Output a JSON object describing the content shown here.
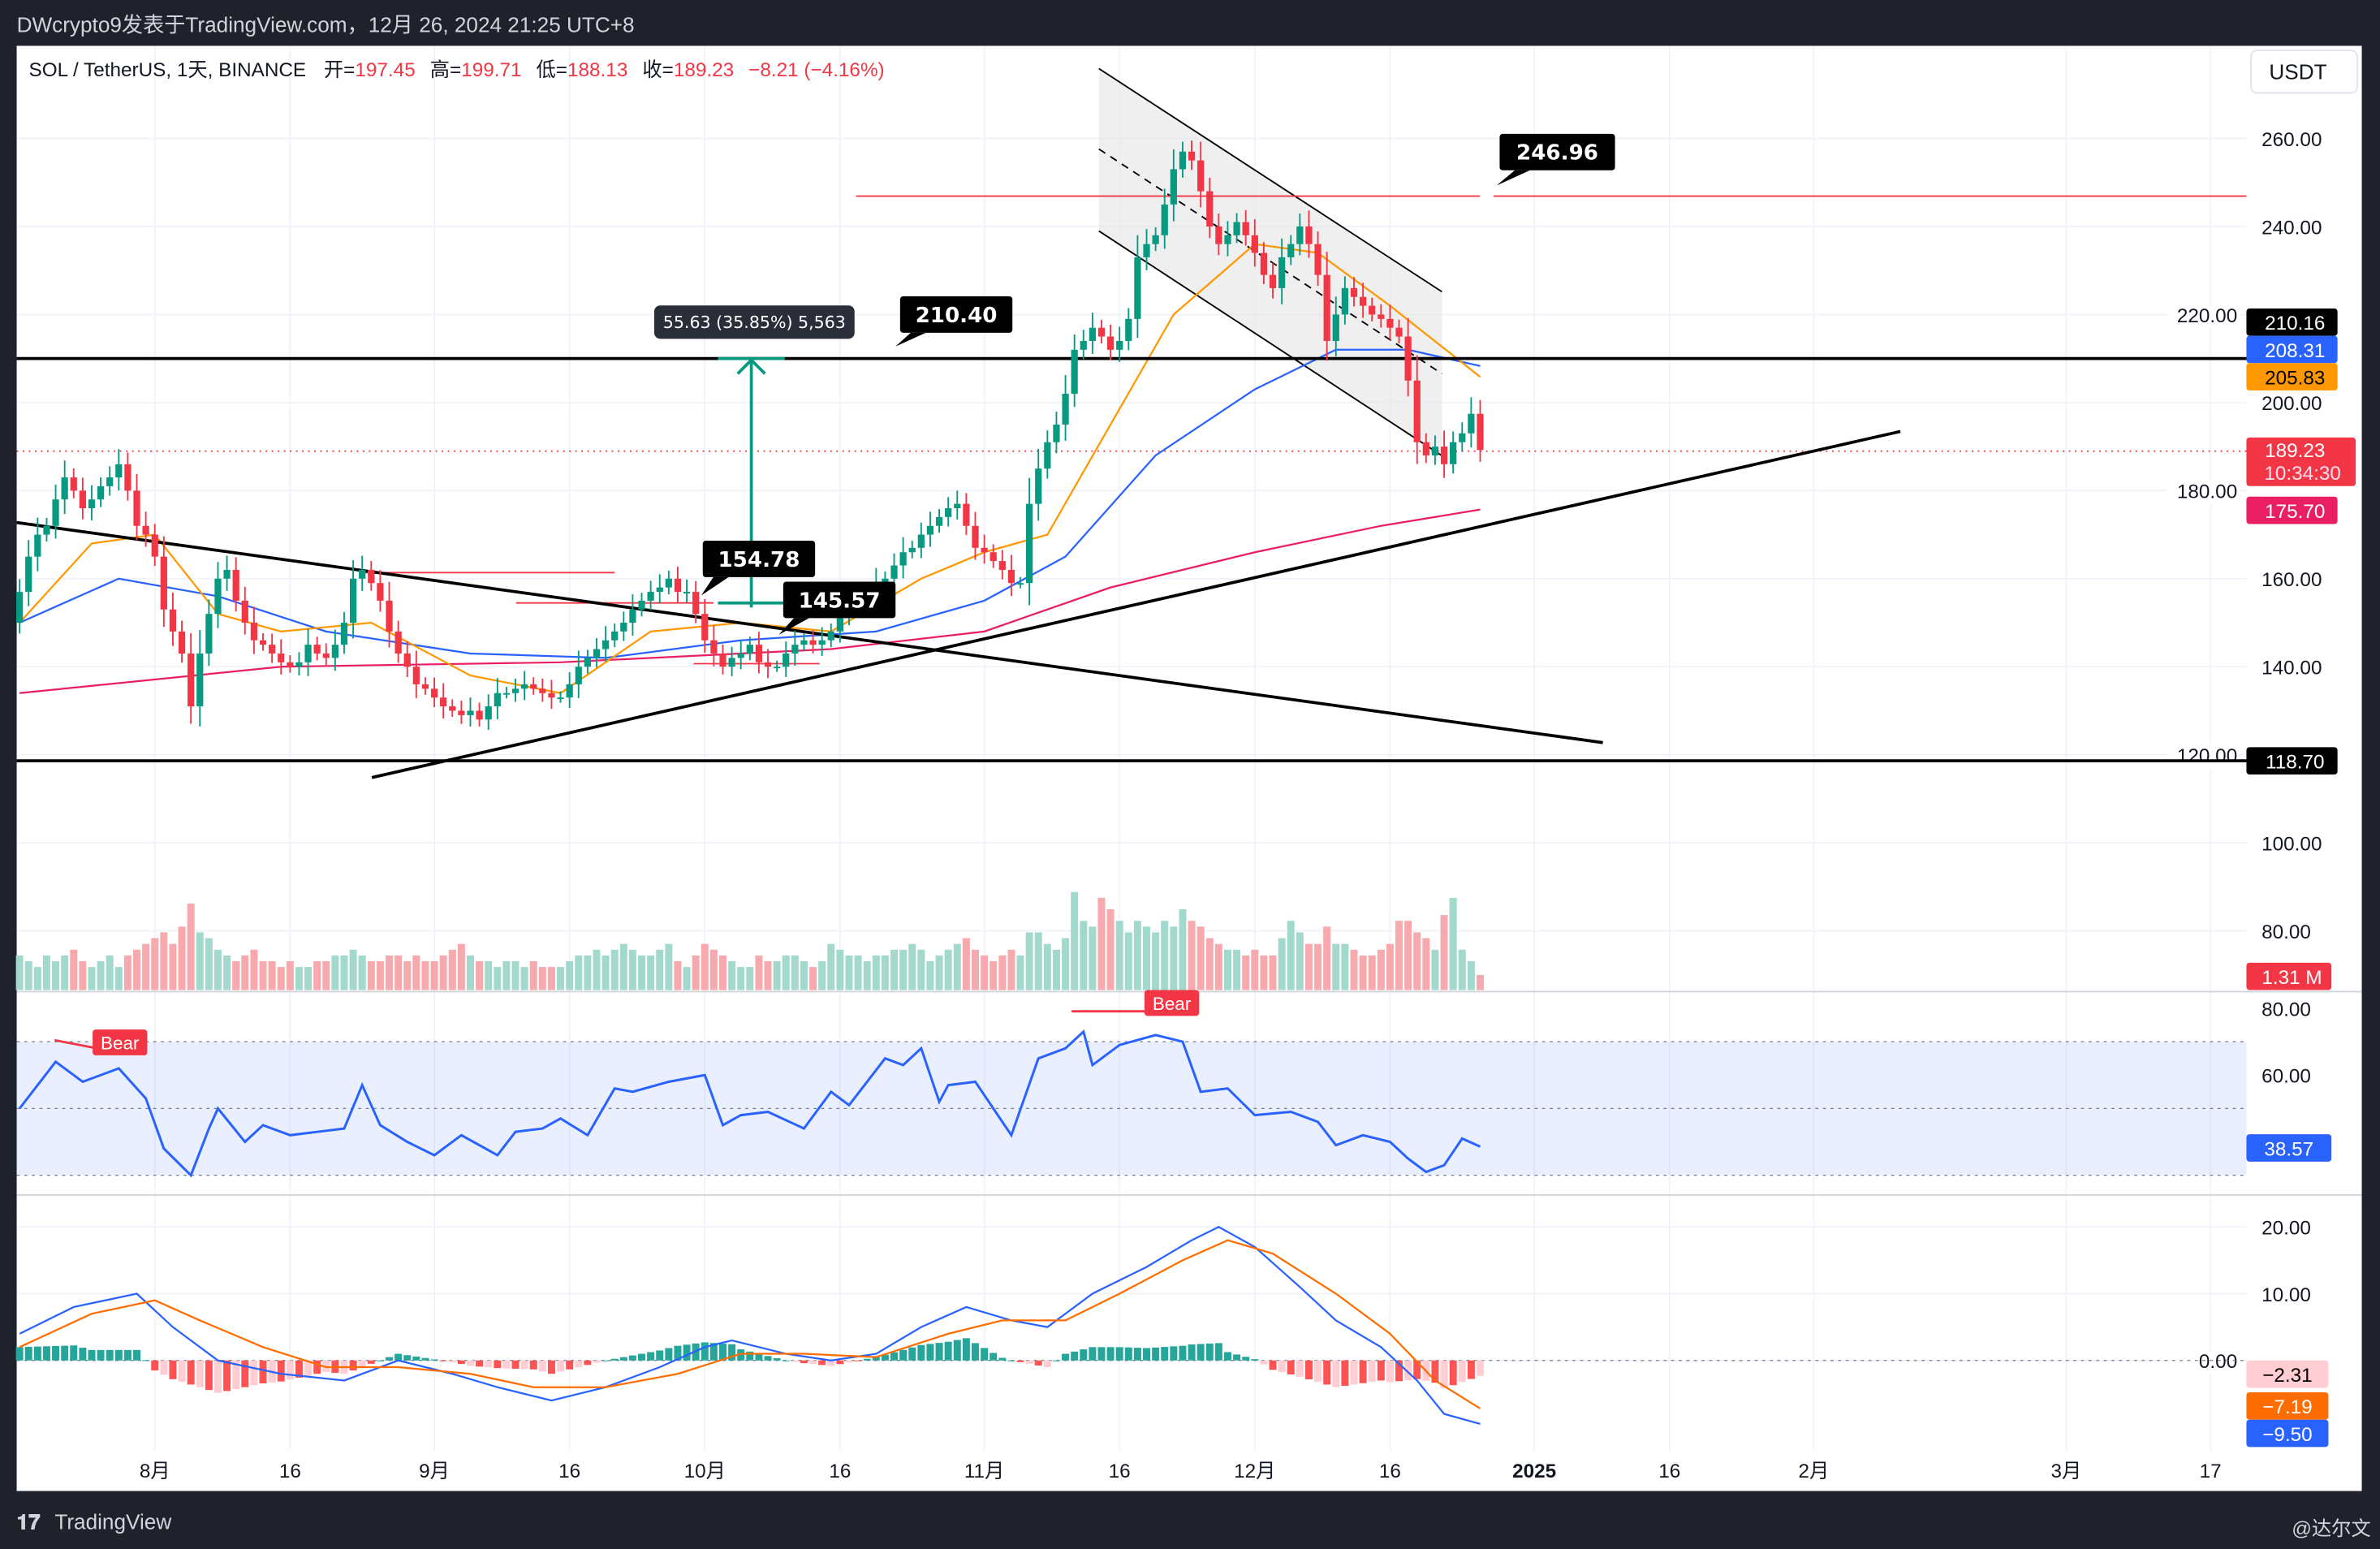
{
  "header": {
    "publisher": "DWcrypto9发表于TradingView.com，12月 26, 2024 21:25 UTC+8"
  },
  "legend": {
    "symbol": "SOL / TetherUS, 1天, BINANCE",
    "open_label": "开=",
    "open": "197.45",
    "high_label": "高=",
    "high": "199.71",
    "low_label": "低=",
    "low": "188.13",
    "close_label": "收=",
    "close": "189.23",
    "change": "−8.21 (−4.16%)"
  },
  "currency": "USDT",
  "colors": {
    "up": "#089981",
    "down": "#f23645",
    "ema_fast": "#ff9800",
    "ema_mid": "#2962ff",
    "ema_slow": "#e91e63",
    "rsi": "#2962ff",
    "macd": "#2962ff",
    "signal": "#ff6d00"
  },
  "price_axis": [
    "260.00",
    "240.00",
    "220.00",
    "200.00",
    "180.00",
    "160.00",
    "140.00",
    "120.00",
    "100.00",
    "80.00"
  ],
  "rsi_axis": [
    "80.00",
    "60.00"
  ],
  "macd_axis": [
    "20.00",
    "10.00",
    "0.00"
  ],
  "time_axis": [
    {
      "label": "8月",
      "date": "2024-08-01"
    },
    {
      "label": "16",
      "date": "2024-08-16"
    },
    {
      "label": "9月",
      "date": "2024-09-01"
    },
    {
      "label": "16",
      "date": "2024-09-16"
    },
    {
      "label": "10月",
      "date": "2024-10-01"
    },
    {
      "label": "16",
      "date": "2024-10-16"
    },
    {
      "label": "11月",
      "date": "2024-11-01"
    },
    {
      "label": "16",
      "date": "2024-11-16"
    },
    {
      "label": "12月",
      "date": "2024-12-01"
    },
    {
      "label": "16",
      "date": "2024-12-16"
    },
    {
      "label": "2025",
      "date": "2025-01-01"
    },
    {
      "label": "16",
      "date": "2025-01-16"
    },
    {
      "label": "2月",
      "date": "2025-02-01"
    },
    {
      "label": "3月",
      "date": "2025-03-01"
    },
    {
      "label": "17",
      "date": "2025-03-17"
    }
  ],
  "price_tags": {
    "level_high": "210.16",
    "ema_mid": "208.31",
    "ema_fast": "205.83",
    "last": "189.23",
    "countdown": "10:34:30",
    "ema_slow": "175.70",
    "level_low": "118.70",
    "volume": "1.31 M",
    "rsi": "38.57",
    "hist": "−2.31",
    "signal": "−7.19",
    "macd": "−9.50"
  },
  "annotations": {
    "l1": "246.96",
    "l2": "210.40",
    "l3": "154.78",
    "l4": "145.57",
    "measure": "55.63 (35.85%) 5,563",
    "bear1": "Bear",
    "bear2": "Bear"
  },
  "footer": {
    "brand": "TradingView",
    "watermark": "@达尔文"
  },
  "chart_data": {
    "type": "candlestick",
    "start_date": "2024-07-17",
    "closes": [
      157,
      165,
      170,
      172,
      178,
      183,
      180,
      176,
      178,
      181,
      183,
      186,
      180,
      172,
      170,
      165,
      153,
      148,
      143,
      131,
      143,
      152,
      160,
      162,
      155,
      150,
      146,
      145,
      143,
      141,
      140,
      141,
      145,
      143,
      142,
      145,
      150,
      160,
      162,
      159,
      155,
      148,
      143,
      140,
      136,
      135,
      133,
      131,
      130,
      129,
      130,
      128,
      131,
      134,
      134,
      135,
      136,
      135,
      134,
      133,
      133,
      136,
      140,
      142,
      144,
      146,
      148,
      150,
      153,
      155,
      157,
      158,
      160,
      157,
      157,
      152,
      146,
      143,
      140,
      142,
      143,
      145,
      141,
      140,
      140,
      143,
      145,
      146,
      145,
      146,
      148,
      152,
      153,
      154,
      156,
      159,
      160,
      163,
      166,
      167,
      170,
      172,
      174,
      176,
      177,
      172,
      167,
      166,
      164,
      162,
      159,
      159,
      177,
      185,
      191,
      195,
      202,
      212,
      214,
      217,
      215,
      212,
      214,
      219,
      233,
      236,
      238,
      245,
      253,
      257,
      255,
      248,
      240,
      236,
      238,
      241,
      238,
      234,
      229,
      226,
      233,
      236,
      240,
      236,
      229,
      214,
      220,
      226,
      224,
      222,
      220,
      219,
      217,
      215,
      205,
      191,
      188,
      190,
      186,
      191,
      193,
      197.45,
      189.23
    ],
    "volume_m": [
      3,
      2.5,
      2,
      3,
      2.5,
      3,
      3.5,
      2.5,
      2,
      2.5,
      3,
      2,
      3,
      3.5,
      4,
      4.5,
      5,
      4,
      5.5,
      7.5,
      5,
      4.5,
      3.5,
      3,
      2.5,
      3,
      3.5,
      2.5,
      2.5,
      2,
      2.5,
      2,
      2,
      2.5,
      2.5,
      3,
      3,
      3.5,
      3,
      2.5,
      2.5,
      3,
      3,
      2.5,
      3,
      2.5,
      2.5,
      3,
      3.5,
      4,
      3,
      2.5,
      2.5,
      2,
      2.5,
      2.5,
      2,
      2.5,
      2,
      2,
      2,
      2.5,
      3,
      3,
      3.5,
      3,
      3.5,
      4,
      3.5,
      3,
      3,
      3.5,
      4,
      2.5,
      2,
      3,
      4,
      3.5,
      3,
      2.5,
      2,
      2,
      3,
      2.5,
      2.5,
      3,
      3,
      2.5,
      2,
      2.5,
      4,
      3.5,
      3,
      3,
      2.5,
      3,
      3,
      3.5,
      3.5,
      4,
      3.5,
      2.5,
      3,
      3.5,
      4,
      4.5,
      3.5,
      3,
      2.5,
      3,
      3.5,
      3,
      5,
      5,
      4,
      3.5,
      4.5,
      8.5,
      6,
      5.5,
      8,
      7,
      6,
      5,
      6,
      5.5,
      5,
      6,
      5.5,
      7,
      6,
      5.5,
      4.5,
      4,
      3.5,
      3.5,
      3,
      3.5,
      3,
      3,
      4.5,
      6,
      5,
      4,
      4,
      5.5,
      4,
      4,
      3.5,
      3,
      3,
      3.5,
      4,
      6,
      6,
      5,
      4.5,
      3.5,
      6.5,
      8,
      3.5,
      2.5,
      1.31
    ],
    "ema_fast": [
      [
        "2024-07-17",
        150
      ],
      [
        "2024-07-25",
        168
      ],
      [
        "2024-08-01",
        170
      ],
      [
        "2024-08-08",
        152
      ],
      [
        "2024-08-15",
        148
      ],
      [
        "2024-08-25",
        150
      ],
      [
        "2024-09-05",
        138
      ],
      [
        "2024-09-15",
        134
      ],
      [
        "2024-09-25",
        148
      ],
      [
        "2024-10-05",
        150
      ],
      [
        "2024-10-15",
        148
      ],
      [
        "2024-10-25",
        160
      ],
      [
        "2024-11-01",
        166
      ],
      [
        "2024-11-08",
        170
      ],
      [
        "2024-11-15",
        195
      ],
      [
        "2024-11-22",
        220
      ],
      [
        "2024-12-01",
        236
      ],
      [
        "2024-12-08",
        234
      ],
      [
        "2024-12-16",
        222
      ],
      [
        "2024-12-26",
        205.83
      ]
    ],
    "ema_mid": [
      [
        "2024-07-17",
        150
      ],
      [
        "2024-07-28",
        160
      ],
      [
        "2024-08-08",
        156
      ],
      [
        "2024-08-20",
        148
      ],
      [
        "2024-09-05",
        143
      ],
      [
        "2024-09-20",
        142
      ],
      [
        "2024-10-05",
        146
      ],
      [
        "2024-10-20",
        148
      ],
      [
        "2024-11-01",
        155
      ],
      [
        "2024-11-10",
        165
      ],
      [
        "2024-11-20",
        188
      ],
      [
        "2024-12-01",
        203
      ],
      [
        "2024-12-10",
        212
      ],
      [
        "2024-12-18",
        212
      ],
      [
        "2024-12-26",
        208.31
      ]
    ],
    "ema_slow": [
      [
        "2024-07-17",
        134
      ],
      [
        "2024-08-15",
        140
      ],
      [
        "2024-09-15",
        141
      ],
      [
        "2024-10-15",
        144
      ],
      [
        "2024-11-01",
        148
      ],
      [
        "2024-11-15",
        158
      ],
      [
        "2024-12-01",
        166
      ],
      [
        "2024-12-15",
        172
      ],
      [
        "2024-12-26",
        175.7
      ]
    ],
    "rsi": [
      [
        "2024-07-17",
        50
      ],
      [
        "2024-07-21",
        64
      ],
      [
        "2024-07-24",
        58
      ],
      [
        "2024-07-28",
        62
      ],
      [
        "2024-07-31",
        53
      ],
      [
        "2024-08-02",
        38
      ],
      [
        "2024-08-05",
        30
      ],
      [
        "2024-08-07",
        44
      ],
      [
        "2024-08-08",
        50
      ],
      [
        "2024-08-11",
        40
      ],
      [
        "2024-08-13",
        45
      ],
      [
        "2024-08-16",
        42
      ],
      [
        "2024-08-19",
        43
      ],
      [
        "2024-08-22",
        44
      ],
      [
        "2024-08-24",
        57
      ],
      [
        "2024-08-26",
        45
      ],
      [
        "2024-08-29",
        40
      ],
      [
        "2024-09-01",
        36
      ],
      [
        "2024-09-04",
        42
      ],
      [
        "2024-09-08",
        36
      ],
      [
        "2024-09-10",
        43
      ],
      [
        "2024-09-13",
        44
      ],
      [
        "2024-09-15",
        47
      ],
      [
        "2024-09-18",
        42
      ],
      [
        "2024-09-21",
        56
      ],
      [
        "2024-09-23",
        55
      ],
      [
        "2024-09-27",
        58
      ],
      [
        "2024-10-01",
        60
      ],
      [
        "2024-10-03",
        45
      ],
      [
        "2024-10-05",
        48
      ],
      [
        "2024-10-08",
        49
      ],
      [
        "2024-10-12",
        44
      ],
      [
        "2024-10-15",
        55
      ],
      [
        "2024-10-17",
        51
      ],
      [
        "2024-10-21",
        65
      ],
      [
        "2024-10-23",
        63
      ],
      [
        "2024-10-25",
        68
      ],
      [
        "2024-10-27",
        52
      ],
      [
        "2024-10-28",
        57
      ],
      [
        "2024-10-31",
        58
      ],
      [
        "2024-11-04",
        42
      ],
      [
        "2024-11-07",
        65
      ],
      [
        "2024-11-10",
        68
      ],
      [
        "2024-11-12",
        73
      ],
      [
        "2024-11-13",
        63
      ],
      [
        "2024-11-16",
        69
      ],
      [
        "2024-11-20",
        72
      ],
      [
        "2024-11-23",
        70
      ],
      [
        "2024-11-25",
        55
      ],
      [
        "2024-11-28",
        56
      ],
      [
        "2024-12-01",
        48
      ],
      [
        "2024-12-05",
        49
      ],
      [
        "2024-12-08",
        46
      ],
      [
        "2024-12-10",
        39
      ],
      [
        "2024-12-13",
        42
      ],
      [
        "2024-12-16",
        40
      ],
      [
        "2024-12-18",
        35
      ],
      [
        "2024-12-20",
        31
      ],
      [
        "2024-12-22",
        33
      ],
      [
        "2024-12-24",
        41
      ],
      [
        "2024-12-26",
        38.57
      ]
    ],
    "macd": [
      [
        "2024-07-17",
        4
      ],
      [
        "2024-07-23",
        8
      ],
      [
        "2024-07-30",
        10
      ],
      [
        "2024-08-03",
        5
      ],
      [
        "2024-08-08",
        0
      ],
      [
        "2024-08-15",
        -2
      ],
      [
        "2024-08-22",
        -3
      ],
      [
        "2024-08-28",
        0
      ],
      [
        "2024-09-03",
        -2
      ],
      [
        "2024-09-08",
        -4
      ],
      [
        "2024-09-14",
        -6
      ],
      [
        "2024-09-20",
        -4
      ],
      [
        "2024-09-26",
        -1
      ],
      [
        "2024-10-01",
        2
      ],
      [
        "2024-10-04",
        3
      ],
      [
        "2024-10-10",
        1
      ],
      [
        "2024-10-15",
        0
      ],
      [
        "2024-10-20",
        1
      ],
      [
        "2024-10-25",
        5
      ],
      [
        "2024-10-30",
        8
      ],
      [
        "2024-11-04",
        6
      ],
      [
        "2024-11-08",
        5
      ],
      [
        "2024-11-13",
        10
      ],
      [
        "2024-11-19",
        14
      ],
      [
        "2024-11-24",
        18
      ],
      [
        "2024-11-27",
        20
      ],
      [
        "2024-12-01",
        17
      ],
      [
        "2024-12-06",
        11
      ],
      [
        "2024-12-10",
        6
      ],
      [
        "2024-12-15",
        2
      ],
      [
        "2024-12-19",
        -3
      ],
      [
        "2024-12-22",
        -8
      ],
      [
        "2024-12-26",
        -9.5
      ]
    ],
    "signal": [
      [
        "2024-07-17",
        2
      ],
      [
        "2024-07-25",
        7
      ],
      [
        "2024-08-01",
        9
      ],
      [
        "2024-08-06",
        6
      ],
      [
        "2024-08-13",
        2
      ],
      [
        "2024-08-20",
        -1
      ],
      [
        "2024-08-28",
        -1
      ],
      [
        "2024-09-05",
        -2
      ],
      [
        "2024-09-12",
        -4
      ],
      [
        "2024-09-20",
        -4
      ],
      [
        "2024-09-28",
        -2
      ],
      [
        "2024-10-05",
        1
      ],
      [
        "2024-10-12",
        1
      ],
      [
        "2024-10-20",
        0.5
      ],
      [
        "2024-10-28",
        4
      ],
      [
        "2024-11-03",
        6
      ],
      [
        "2024-11-10",
        6
      ],
      [
        "2024-11-16",
        10
      ],
      [
        "2024-11-23",
        15
      ],
      [
        "2024-11-28",
        18
      ],
      [
        "2024-12-03",
        16
      ],
      [
        "2024-12-10",
        10
      ],
      [
        "2024-12-16",
        4
      ],
      [
        "2024-12-21",
        -3
      ],
      [
        "2024-12-26",
        -7.19
      ]
    ],
    "horizontal_levels": [
      210.16,
      118.7,
      246.96
    ],
    "ylim": [
      80,
      265
    ],
    "rsi_band": [
      30,
      70
    ]
  }
}
